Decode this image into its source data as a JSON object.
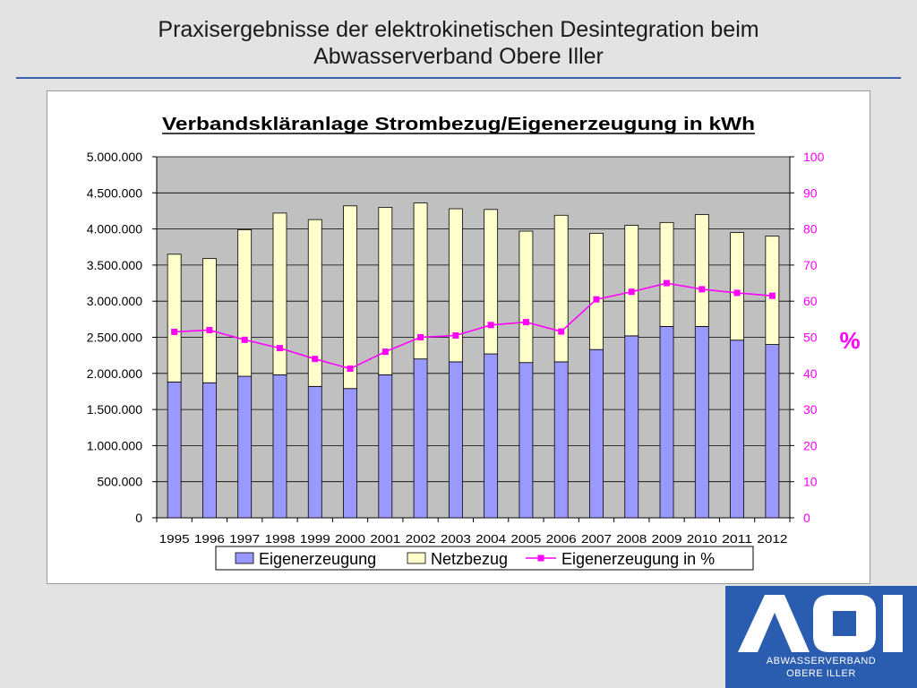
{
  "slide": {
    "title_line1": "Praxisergebnisse der elektrokinetischen Desintegration beim",
    "title_line2": "Abwasserverband Obere Iller"
  },
  "logo": {
    "letters": "AOI",
    "line1": "ABWASSERVERBAND",
    "line2": "OBERE ILLER",
    "color": "#2a5db0"
  },
  "chart_data": {
    "type": "bar",
    "stacked": true,
    "title": "Verbandskläranlage Strombezug/Eigenerzeugung in kWh",
    "y2label": "%",
    "categories": [
      "1995",
      "1996",
      "1997",
      "1998",
      "1999",
      "2000",
      "2001",
      "2002",
      "2003",
      "2004",
      "2005",
      "2006",
      "2007",
      "2008",
      "2009",
      "2010",
      "2011",
      "2012"
    ],
    "series": [
      {
        "name": "Eigenerzeugung",
        "type": "bar",
        "color": "#9999ff",
        "values": [
          1880000,
          1870000,
          1960000,
          1980000,
          1820000,
          1790000,
          1980000,
          2200000,
          2160000,
          2270000,
          2150000,
          2160000,
          2330000,
          2520000,
          2650000,
          2650000,
          2460000,
          2400000
        ]
      },
      {
        "name": "Netzbezug",
        "type": "bar",
        "color": "#ffffcc",
        "values": [
          1770000,
          1720000,
          2030000,
          2240000,
          2310000,
          2530000,
          2320000,
          2160000,
          2120000,
          2000000,
          1820000,
          2030000,
          1610000,
          1530000,
          1440000,
          1550000,
          1490000,
          1500000
        ]
      },
      {
        "name": "Eigenerzeugung in %",
        "type": "line",
        "axis": "right",
        "color": "#ff00ff",
        "values": [
          51.5,
          52,
          49.3,
          47,
          44,
          41.3,
          46,
          50,
          50.5,
          53.4,
          54.2,
          51.6,
          60.5,
          62.6,
          65,
          63.3,
          62.3,
          61.5
        ]
      }
    ],
    "ylim": [
      0,
      5000000
    ],
    "yticks": [
      "0",
      "500.000",
      "1.000.000",
      "1.500.000",
      "2.000.000",
      "2.500.000",
      "3.000.000",
      "3.500.000",
      "4.000.000",
      "4.500.000",
      "5.000.000"
    ],
    "y2lim": [
      0,
      100
    ],
    "y2ticks": [
      "0",
      "10",
      "20",
      "30",
      "40",
      "50",
      "60",
      "70",
      "80",
      "90",
      "100"
    ],
    "plot_background": "#c0c0c0",
    "grid": true,
    "legend": "bottom"
  }
}
